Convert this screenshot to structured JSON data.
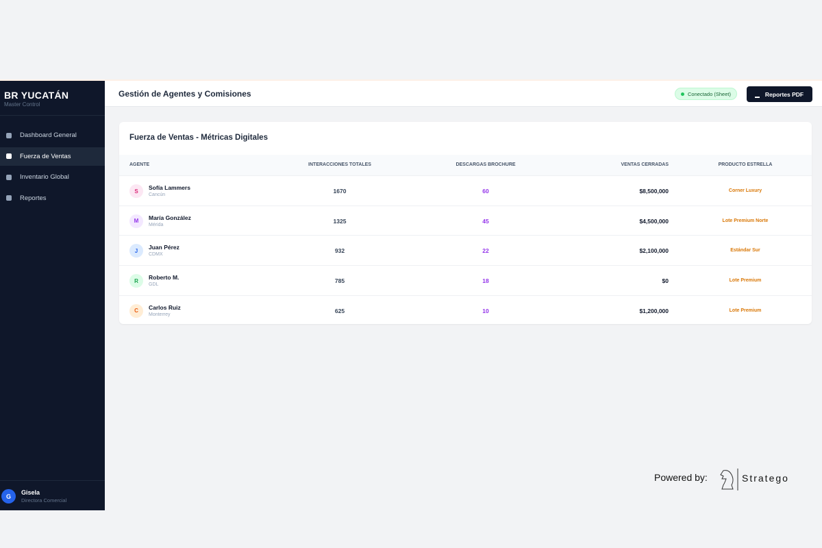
{
  "sidebar": {
    "brand": "BR YUCATÁN",
    "subtitle": "Master Control",
    "nav": [
      "Dashboard General",
      "Fuerza de Ventas",
      "Inventario Global",
      "Reportes"
    ],
    "user": {
      "initial": "G",
      "name": "Gisela",
      "role": "Directora Comercial"
    }
  },
  "header": {
    "title": "Gestión de Agentes y Comisiones",
    "status": "Conectado (Sheet)",
    "button": "Reportes PDF"
  },
  "table": {
    "title": "Fuerza de Ventas - Métricas Digitales",
    "columns": [
      "AGENTE",
      "INTERACCIONES TOTALES",
      "DESCARGAS BROCHURE",
      "VENTAS CERRADAS",
      "PRODUCTO ESTRELLA"
    ],
    "rows": [
      {
        "initial": "S",
        "name": "Sofía Lammers",
        "city": "Cancún",
        "interactions": 1670,
        "downloads": 60,
        "sales": "$8,500,000",
        "product": "Corner Luxury"
      },
      {
        "initial": "M",
        "name": "María González",
        "city": "Mérida",
        "interactions": 1325,
        "downloads": 45,
        "sales": "$4,500,000",
        "product": "Lote Premium Norte"
      },
      {
        "initial": "J",
        "name": "Juan Pérez",
        "city": "CDMX",
        "interactions": 932,
        "downloads": 22,
        "sales": "$2,100,000",
        "product": "Estándar Sur"
      },
      {
        "initial": "R",
        "name": "Roberto M.",
        "city": "GDL",
        "interactions": 785,
        "downloads": 18,
        "sales": "$0",
        "product": "Lote Premium"
      },
      {
        "initial": "C",
        "name": "Carlos Ruiz",
        "city": "Monterrey",
        "interactions": 625,
        "downloads": 10,
        "sales": "$1,200,000",
        "product": "Lote Premium"
      }
    ]
  },
  "footer": {
    "powered": "Powered by:",
    "brand": "Stratego"
  }
}
